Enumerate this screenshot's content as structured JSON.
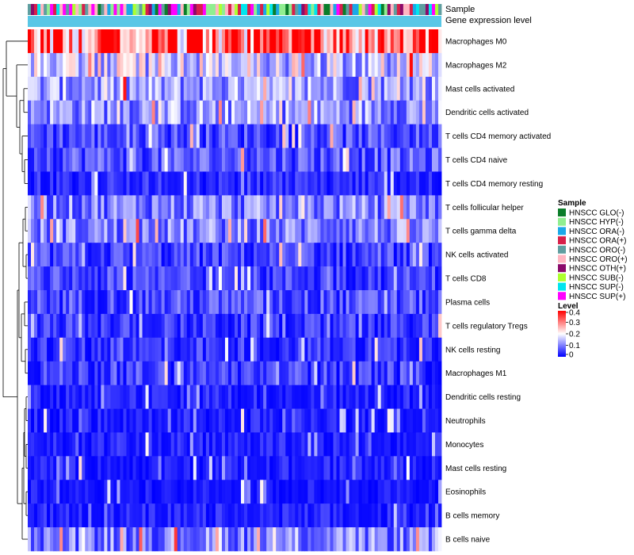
{
  "chart_data": {
    "type": "heatmap",
    "title": "",
    "column_annotations": [
      "Sample",
      "Gene expression level"
    ],
    "gene_expression_color": "#59c7e6",
    "rows": [
      "Macrophages M0",
      "Macrophages M2",
      "Mast cells activated",
      "Dendritic cells activated",
      "T cells CD4 memory activated",
      "T cells CD4 naive",
      "T cells CD4 memory resting",
      "T cells follicular helper",
      "T cells gamma delta",
      "NK cells activated",
      "T cells CD8",
      "Plasma cells",
      "T cells regulatory  Tregs",
      "NK cells resting",
      "Macrophages M1",
      "Dendritic cells resting",
      "Neutrophils",
      "Monocytes",
      "Mast cells resting",
      "Eosinophils",
      "B cells memory",
      "B cells naive"
    ],
    "row_means": [
      0.32,
      0.16,
      0.12,
      0.12,
      0.06,
      0.07,
      0.03,
      0.1,
      0.1,
      0.05,
      0.05,
      0.06,
      0.04,
      0.04,
      0.05,
      0.02,
      0.02,
      0.02,
      0.02,
      0.01,
      0.02,
      0.1
    ],
    "n_columns": 130,
    "sample_legend": {
      "title": "Sample",
      "items": [
        {
          "label": "HNSCC GLO(-)",
          "color": "#0b7d2a"
        },
        {
          "label": "HNSCC HYP(-)",
          "color": "#90ee90"
        },
        {
          "label": "HNSCC ORA(-)",
          "color": "#1aa8e8"
        },
        {
          "label": "HNSCC ORA(+)",
          "color": "#d8204a"
        },
        {
          "label": "HNSCC ORO(-)",
          "color": "#5f9ea0"
        },
        {
          "label": "HNSCC ORO(+)",
          "color": "#ffb6c1"
        },
        {
          "label": "HNSCC OTH(+)",
          "color": "#8b0a6b"
        },
        {
          "label": "HNSCC SUB(-)",
          "color": "#adff2f"
        },
        {
          "label": "HNSCC SUP(-)",
          "color": "#00e5ee"
        },
        {
          "label": "HNSCC SUP(+)",
          "color": "#ff00ff"
        }
      ]
    },
    "level_legend": {
      "title": "Level",
      "ticks": [
        0.4,
        0.3,
        0.2,
        0.1,
        0
      ],
      "range": [
        0,
        0.4
      ],
      "colors": [
        "#0000ff",
        "#ffffff",
        "#ff0000"
      ]
    }
  }
}
